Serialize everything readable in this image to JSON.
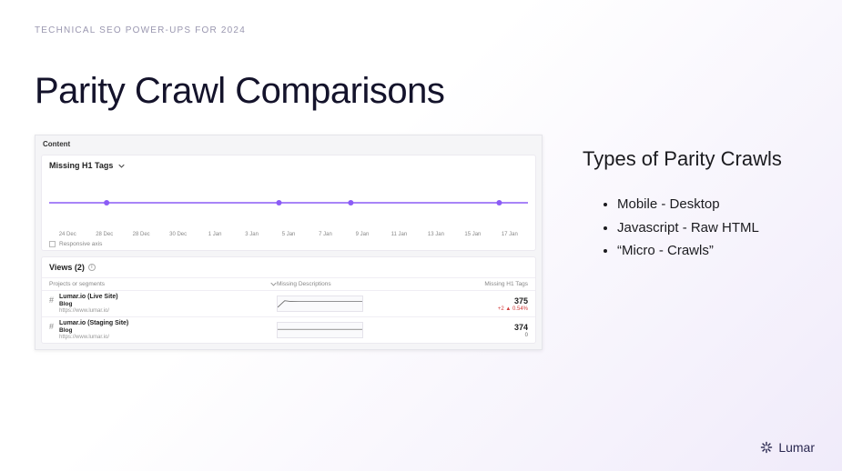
{
  "eyebrow": "TECHNICAL SEO POWER-UPS FOR 2024",
  "page_title": "Parity Crawl Comparisons",
  "right": {
    "heading": "Types of Parity Crawls",
    "items": [
      "Mobile - Desktop",
      "Javascript - Raw HTML",
      "“Micro - Crawls”"
    ]
  },
  "panel": {
    "header": "Content",
    "chart": {
      "title": "Missing H1 Tags",
      "type": "line",
      "line_color": "#8b5cf6",
      "point_color": "#8b5cf6",
      "grid_color": "#f0eef4",
      "x_labels": [
        "24 Dec",
        "28 Dec",
        "28 Dec",
        "30 Dec",
        "1 Jan",
        "3 Jan",
        "5 Jan",
        "7 Jan",
        "9 Jan",
        "11 Jan",
        "13 Jan",
        "15 Jan",
        "17 Jan"
      ],
      "points": [
        {
          "x": 0.12,
          "y": 0.5
        },
        {
          "x": 0.48,
          "y": 0.5
        },
        {
          "x": 0.63,
          "y": 0.5
        },
        {
          "x": 0.94,
          "y": 0.5
        }
      ],
      "responsive_axis_label": "Responsive axis"
    },
    "views": {
      "title": "Views (2)",
      "columns": {
        "left": "Projects or segments",
        "mid": "Missing Descriptions",
        "right": "Missing H1 Tags"
      },
      "rows": [
        {
          "name": "Lumar.io (Live Site)",
          "tag": "Blog",
          "url": "https://www.lumar.io/",
          "metric_value": "375",
          "metric_delta": "+2 ▲ 0.54%",
          "delta_class": "pos",
          "spark_values": [
            0.25,
            0.7,
            0.65,
            0.66,
            0.66,
            0.66,
            0.66,
            0.66,
            0.66,
            0.66,
            0.66,
            0.66,
            0.66
          ]
        },
        {
          "name": "Lumar.io (Staging Site)",
          "tag": "Blog",
          "url": "https://www.lumar.io/",
          "metric_value": "374",
          "metric_delta": "0",
          "delta_class": "none",
          "spark_values": [
            0.55,
            0.55,
            0.55,
            0.55,
            0.55,
            0.55,
            0.55,
            0.55,
            0.55,
            0.55,
            0.55,
            0.55,
            0.55
          ]
        }
      ]
    }
  },
  "footer": {
    "brand": "Lumar"
  },
  "colors": {
    "accent": "#8b5cf6",
    "text_dark": "#14132b",
    "muted": "#9a97b0",
    "panel_bg": "#f5f5f7",
    "card_border": "#eceaf0",
    "delta_red": "#d23b3b"
  }
}
